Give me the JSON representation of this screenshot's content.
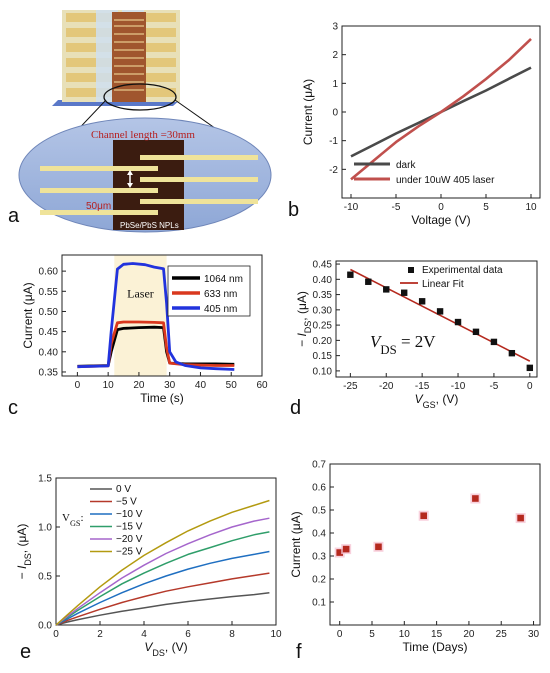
{
  "panel_labels": [
    "a",
    "b",
    "c",
    "d",
    "e",
    "f"
  ],
  "schematic": {
    "channel_text": "Channel length =30mm",
    "spacing_text": "50μm",
    "material_text": "PbSe/PbS NPLs"
  },
  "chart_data": [
    {
      "id": "b",
      "type": "line",
      "xlabel": "Voltage (V)",
      "ylabel": "Current (μA)",
      "xlim": [
        -11,
        11
      ],
      "ylim": [
        -3,
        3
      ],
      "xticks": [
        -10,
        -5,
        0,
        5,
        10
      ],
      "yticks": [
        -2,
        -1,
        0,
        1,
        2,
        3
      ],
      "legend_position": "bottom-right",
      "series": [
        {
          "name": "dark",
          "color": "#4a4a4a",
          "x": [
            -10,
            -7.5,
            -5,
            -2.5,
            0,
            2.5,
            5,
            7.5,
            10
          ],
          "y": [
            -1.55,
            -1.15,
            -0.75,
            -0.38,
            0,
            0.38,
            0.75,
            1.15,
            1.55
          ]
        },
        {
          "name": "under 10uW 405 laser",
          "color": "#c0504d",
          "x": [
            -10,
            -7.5,
            -5,
            -2.5,
            0,
            2.5,
            5,
            7.5,
            10
          ],
          "y": [
            -2.35,
            -1.7,
            -1.05,
            -0.5,
            0,
            0.55,
            1.15,
            1.8,
            2.55
          ]
        }
      ]
    },
    {
      "id": "c",
      "type": "line",
      "xlabel": "Time (s)",
      "ylabel": "Current (μA)",
      "xlim": [
        -5,
        60
      ],
      "ylim": [
        0.34,
        0.64
      ],
      "xticks": [
        0,
        10,
        20,
        30,
        40,
        50,
        60
      ],
      "yticks": [
        0.35,
        0.4,
        0.45,
        0.5,
        0.55,
        0.6
      ],
      "yticklabels": [
        "0.35",
        "0.40",
        "0.45",
        "0.50",
        "0.55",
        "0.60"
      ],
      "annotation": "Laser",
      "shade_range": [
        12,
        29
      ],
      "legend_position": "top-right",
      "series": [
        {
          "name": "1064 nm",
          "color": "#000000",
          "x": [
            0,
            10,
            11,
            13,
            15,
            20,
            25,
            28,
            29,
            30,
            35,
            40,
            45,
            51
          ],
          "y": [
            0.364,
            0.366,
            0.4,
            0.455,
            0.458,
            0.46,
            0.461,
            0.46,
            0.4,
            0.372,
            0.37,
            0.37,
            0.37,
            0.369
          ]
        },
        {
          "name": "633 nm",
          "color": "#d9381e",
          "x": [
            0,
            10,
            11,
            13,
            15,
            20,
            25,
            28,
            29,
            30,
            35,
            40,
            45,
            51
          ],
          "y": [
            0.363,
            0.365,
            0.42,
            0.472,
            0.474,
            0.474,
            0.473,
            0.472,
            0.41,
            0.372,
            0.368,
            0.367,
            0.366,
            0.366
          ]
        },
        {
          "name": "405 nm",
          "color": "#2233dd",
          "x": [
            0,
            10,
            11,
            13,
            15,
            18,
            22,
            25,
            28,
            29,
            30,
            32,
            35,
            40,
            45,
            51
          ],
          "y": [
            0.363,
            0.365,
            0.45,
            0.605,
            0.617,
            0.619,
            0.616,
            0.61,
            0.606,
            0.52,
            0.4,
            0.375,
            0.366,
            0.36,
            0.358,
            0.356
          ]
        }
      ]
    },
    {
      "id": "d",
      "type": "scatter",
      "xlabel": "V_GS, (V)",
      "ylabel": "− I_DS, (μA)",
      "xlim": [
        -27,
        1
      ],
      "ylim": [
        0.08,
        0.46
      ],
      "xticks": [
        -25,
        -20,
        -15,
        -10,
        -5,
        0
      ],
      "yticks": [
        0.1,
        0.15,
        0.2,
        0.25,
        0.3,
        0.35,
        0.4,
        0.45
      ],
      "yticklabels": [
        "0.10",
        "0.15",
        "0.20",
        "0.25",
        "0.30",
        "0.35",
        "0.40",
        "0.45"
      ],
      "annotation": "V_DS = 2V",
      "legend_position": "top-right",
      "series": [
        {
          "name": "Experimental data",
          "color": "#111111",
          "x": [
            -25,
            -22.5,
            -20,
            -17.5,
            -15,
            -12.5,
            -10,
            -7.5,
            -5,
            -2.5,
            0
          ],
          "y": [
            0.415,
            0.392,
            0.367,
            0.356,
            0.328,
            0.295,
            0.26,
            0.228,
            0.195,
            0.158,
            0.11
          ]
        },
        {
          "name": "Linear Fit",
          "color": "#b5291e",
          "x": [
            -25,
            0
          ],
          "y": [
            0.432,
            0.132
          ]
        }
      ]
    },
    {
      "id": "e",
      "type": "line",
      "xlabel": "V_DS, (V)",
      "ylabel": "− I_DS, (μA)",
      "xlim": [
        0,
        10
      ],
      "ylim": [
        0,
        1.5
      ],
      "xticks": [
        0,
        2,
        4,
        6,
        8,
        10
      ],
      "yticks": [
        0.0,
        0.5,
        1.0,
        1.5
      ],
      "yticklabels": [
        "0.0",
        "0.5",
        "1.0",
        "1.5"
      ],
      "legend_title": "V_GS:",
      "legend_position": "top-left",
      "x": [
        0,
        0.5,
        1,
        2,
        3,
        4,
        5,
        6,
        7,
        8,
        9,
        9.7
      ],
      "series": [
        {
          "name": "0 V",
          "color": "#555555",
          "y": [
            0,
            0.03,
            0.055,
            0.1,
            0.14,
            0.175,
            0.21,
            0.24,
            0.265,
            0.29,
            0.31,
            0.33
          ]
        },
        {
          "name": "−5 V",
          "color": "#b5392a",
          "y": [
            0,
            0.045,
            0.085,
            0.16,
            0.23,
            0.29,
            0.345,
            0.39,
            0.43,
            0.47,
            0.505,
            0.53
          ]
        },
        {
          "name": "−10 V",
          "color": "#1f6fc1",
          "y": [
            0,
            0.06,
            0.12,
            0.23,
            0.33,
            0.42,
            0.5,
            0.57,
            0.63,
            0.68,
            0.72,
            0.75
          ]
        },
        {
          "name": "−15 V",
          "color": "#2f9e6a",
          "y": [
            0,
            0.075,
            0.15,
            0.29,
            0.42,
            0.53,
            0.63,
            0.72,
            0.79,
            0.86,
            0.92,
            0.95
          ]
        },
        {
          "name": "−20 V",
          "color": "#a566cc",
          "y": [
            0,
            0.085,
            0.17,
            0.33,
            0.48,
            0.61,
            0.73,
            0.83,
            0.92,
            1.0,
            1.06,
            1.09
          ]
        },
        {
          "name": "−25 V",
          "color": "#b39a10",
          "y": [
            0,
            0.1,
            0.2,
            0.39,
            0.56,
            0.71,
            0.84,
            0.96,
            1.06,
            1.15,
            1.22,
            1.27
          ]
        }
      ]
    },
    {
      "id": "f",
      "type": "scatter",
      "xlabel": "Time (Days)",
      "ylabel": "Current (μA)",
      "xlim": [
        -1.5,
        31
      ],
      "ylim": [
        0,
        0.7
      ],
      "xticks": [
        0,
        5,
        10,
        15,
        20,
        25,
        30
      ],
      "yticks": [
        0.1,
        0.2,
        0.3,
        0.4,
        0.5,
        0.6,
        0.7
      ],
      "series": [
        {
          "name": "",
          "color": "#b5291e",
          "x": [
            0,
            1,
            6,
            13,
            21,
            28
          ],
          "y": [
            0.315,
            0.33,
            0.34,
            0.475,
            0.55,
            0.465
          ]
        }
      ]
    }
  ]
}
